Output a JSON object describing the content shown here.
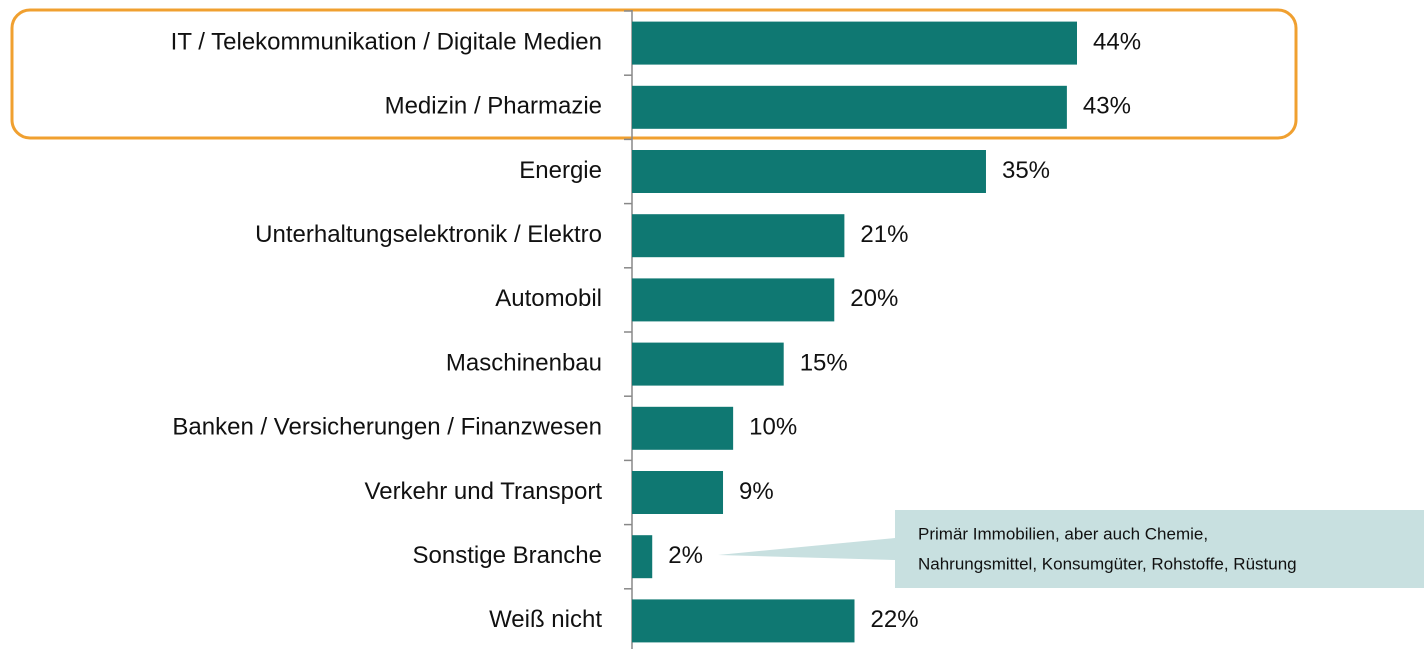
{
  "chart_data": {
    "type": "bar",
    "orientation": "horizontal",
    "categories": [
      "IT / Telekommunikation / Digitale Medien",
      "Medizin / Pharmazie",
      "Energie",
      "Unterhaltungselektronik / Elektro",
      "Automobil",
      "Maschinenbau",
      "Banken / Versicherungen / Finanzwesen",
      "Verkehr und Transport",
      "Sonstige Branche",
      "Weiß nicht"
    ],
    "values": [
      44,
      43,
      35,
      21,
      20,
      15,
      10,
      9,
      2,
      22
    ],
    "value_labels": [
      "44%",
      "43%",
      "35%",
      "21%",
      "20%",
      "15%",
      "10%",
      "9%",
      "2%",
      "22%"
    ],
    "color": "#0f7872",
    "annotation": [
      "Primär Immobilien, aber auch Chemie,",
      "Nahrungsmittel, Konsumgüter, Rohstoffe, Rüstung"
    ]
  }
}
